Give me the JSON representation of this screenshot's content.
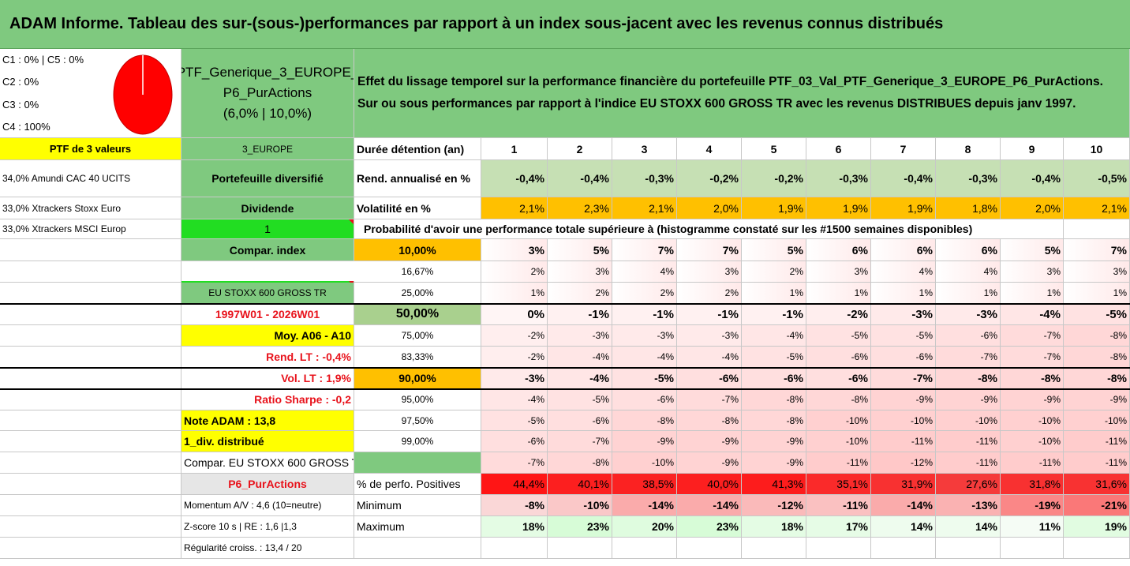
{
  "title": "ADAM Informe. Tableau des sur-(sous-)performances par rapport à un index sous-jacent avec les revenus connus distribués",
  "classes": [
    "C1 : 0% | C5 : 0%",
    "C2 : 0%",
    "C3 : 0%",
    "C4 : 100%"
  ],
  "pie": {
    "C1": 0,
    "C2": 0,
    "C3": 0,
    "C4": 100,
    "C5": 0,
    "color": "#ff0000"
  },
  "portfolio": {
    "name_line1": "PTF_Generique_3_EUROPE_",
    "name_line2": "P6_PurActions",
    "name_line3": "(6,0% | 10,0%)",
    "desc_line1": "Effet du lissage temporel sur la performance financière du portefeuille PTF_03_Val_PTF_Generique_3_EUROPE_P6_PurActions.",
    "desc_line2": "Sur ou sous performances par rapport à l'indice EU STOXX 600 GROSS TR avec les revenus DISTRIBUES depuis janv 1997."
  },
  "left": {
    "header": "PTF de 3 valeurs",
    "holdings": [
      "34,0% Amundi CAC 40 UCITS",
      "33,0% Xtrackers Stoxx Euro",
      "33,0% Xtrackers MSCI Europ"
    ]
  },
  "mid": [
    "3_EUROPE",
    "Portefeuille diversifié",
    "Dividende",
    "1",
    "Compar. index",
    "1",
    "EU STOXX 600 GROSS TR",
    "1997W01 - 2026W01",
    "Moy. A06 - A10",
    "Rend. LT : -0,4%",
    "Vol. LT : 1,9%",
    "Ratio Sharpe : -0,2",
    "Note ADAM : 13,8",
    "1_div. distribué",
    "Compar. EU STOXX 600 GROSS TR",
    "P6_PurActions",
    "Momentum A/V : 4,6 (10=neutre)",
    "Z-score 10 s | RE : 1,6 |1,3",
    "Régularité croiss. : 13,4 / 20"
  ],
  "table": {
    "row_labels": {
      "duration": "Durée détention (an)",
      "rend": "Rend. annualisé en %",
      "vol": "Volatilité en %",
      "prob_header": "Probabilité d'avoir une performance totale supérieure à (histogramme constaté sur les #1500 semaines disponibles)",
      "pos": "% de perfo. Positives",
      "min": "Minimum",
      "max": "Maximum"
    },
    "years": [
      "1",
      "2",
      "3",
      "4",
      "5",
      "6",
      "7",
      "8",
      "9",
      "10"
    ],
    "rend": [
      "-0,4%",
      "-0,4%",
      "-0,3%",
      "-0,2%",
      "-0,2%",
      "-0,3%",
      "-0,4%",
      "-0,3%",
      "-0,4%",
      "-0,5%"
    ],
    "vol": [
      "2,1%",
      "2,3%",
      "2,1%",
      "2,0%",
      "1,9%",
      "1,9%",
      "1,9%",
      "1,8%",
      "2,0%",
      "2,1%"
    ],
    "percentiles": [
      {
        "p": "10,00%",
        "v": [
          "3%",
          "5%",
          "7%",
          "7%",
          "5%",
          "6%",
          "6%",
          "6%",
          "5%",
          "7%"
        ]
      },
      {
        "p": "16,67%",
        "v": [
          "2%",
          "3%",
          "4%",
          "3%",
          "2%",
          "3%",
          "4%",
          "4%",
          "3%",
          "3%"
        ]
      },
      {
        "p": "25,00%",
        "v": [
          "1%",
          "2%",
          "2%",
          "2%",
          "1%",
          "1%",
          "1%",
          "1%",
          "1%",
          "1%"
        ]
      },
      {
        "p": "50,00%",
        "v": [
          "0%",
          "-1%",
          "-1%",
          "-1%",
          "-1%",
          "-2%",
          "-3%",
          "-3%",
          "-4%",
          "-5%"
        ]
      },
      {
        "p": "75,00%",
        "v": [
          "-2%",
          "-3%",
          "-3%",
          "-3%",
          "-4%",
          "-5%",
          "-5%",
          "-6%",
          "-7%",
          "-8%"
        ]
      },
      {
        "p": "83,33%",
        "v": [
          "-2%",
          "-4%",
          "-4%",
          "-4%",
          "-5%",
          "-6%",
          "-6%",
          "-7%",
          "-7%",
          "-8%"
        ]
      },
      {
        "p": "90,00%",
        "v": [
          "-3%",
          "-4%",
          "-5%",
          "-6%",
          "-6%",
          "-6%",
          "-7%",
          "-8%",
          "-8%",
          "-8%"
        ]
      },
      {
        "p": "95,00%",
        "v": [
          "-4%",
          "-5%",
          "-6%",
          "-7%",
          "-8%",
          "-8%",
          "-9%",
          "-9%",
          "-9%",
          "-9%"
        ]
      },
      {
        "p": "97,50%",
        "v": [
          "-5%",
          "-6%",
          "-8%",
          "-8%",
          "-8%",
          "-10%",
          "-10%",
          "-10%",
          "-10%",
          "-10%"
        ]
      },
      {
        "p": "99,00%",
        "v": [
          "-6%",
          "-7%",
          "-9%",
          "-9%",
          "-9%",
          "-10%",
          "-11%",
          "-11%",
          "-10%",
          "-11%"
        ]
      },
      {
        "p": "99,50%",
        "v": [
          "-7%",
          "-8%",
          "-10%",
          "-9%",
          "-9%",
          "-11%",
          "-12%",
          "-11%",
          "-11%",
          "-11%"
        ]
      }
    ],
    "pos": [
      "44,4%",
      "40,1%",
      "38,5%",
      "40,0%",
      "41,3%",
      "35,1%",
      "31,9%",
      "27,6%",
      "31,8%",
      "31,6%"
    ],
    "min": [
      "-8%",
      "-10%",
      "-14%",
      "-14%",
      "-12%",
      "-11%",
      "-14%",
      "-13%",
      "-19%",
      "-21%"
    ],
    "max": [
      "18%",
      "23%",
      "20%",
      "23%",
      "18%",
      "17%",
      "14%",
      "14%",
      "11%",
      "19%"
    ]
  },
  "colors": {
    "title_bg": "#7fc97f",
    "green": "#7fc97f",
    "light_green": "#a9d08e",
    "yellow": "#ffff00",
    "orange": "#ffc000",
    "bright_green": "#22dd22",
    "red_text": "#e8121b"
  }
}
